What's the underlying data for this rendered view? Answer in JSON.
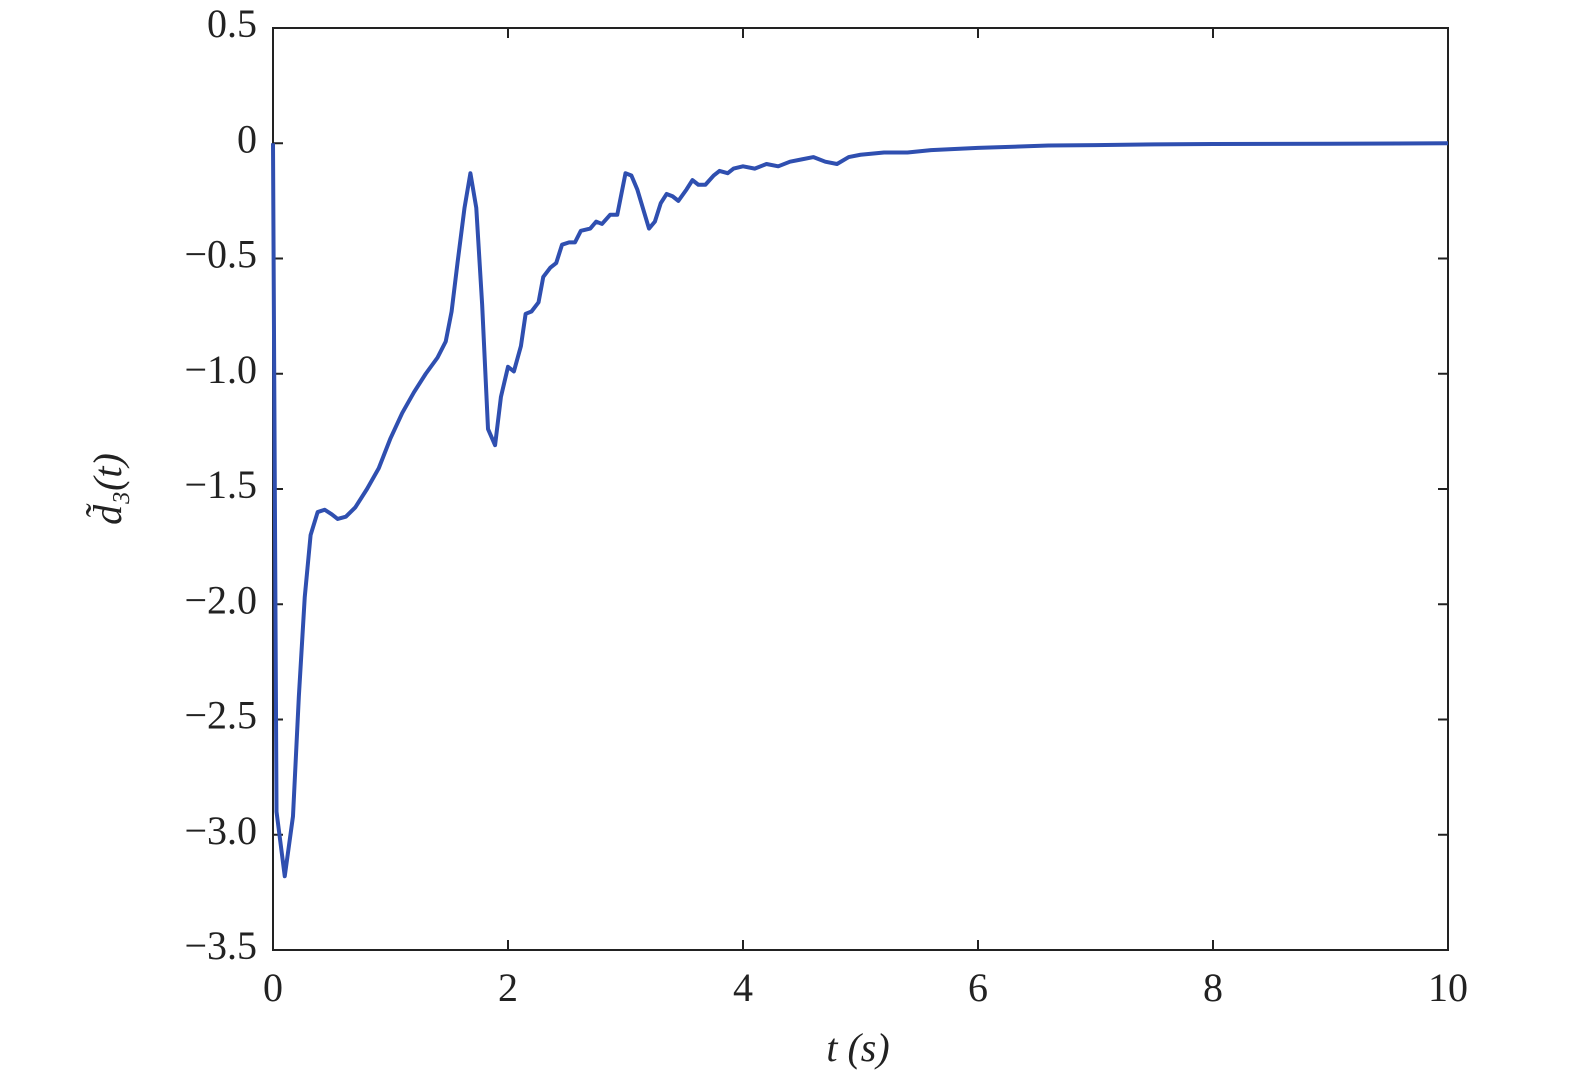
{
  "chart_data": {
    "type": "line",
    "xlabel": "t (s)",
    "ylabel": "d̃₃(t)",
    "x": [
      0,
      0.03,
      0.1,
      0.17,
      0.22,
      0.27,
      0.32,
      0.38,
      0.44,
      0.5,
      0.55,
      0.62,
      0.7,
      0.8,
      0.9,
      1.0,
      1.1,
      1.2,
      1.3,
      1.4,
      1.47,
      1.52,
      1.57,
      1.63,
      1.68,
      1.73,
      1.78,
      1.83,
      1.89,
      1.94,
      2.0,
      2.05,
      2.11,
      2.15,
      2.2,
      2.26,
      2.3,
      2.36,
      2.41,
      2.46,
      2.52,
      2.57,
      2.62,
      2.7,
      2.75,
      2.8,
      2.87,
      2.93,
      3.0,
      3.05,
      3.1,
      3.2,
      3.25,
      3.3,
      3.35,
      3.4,
      3.45,
      3.52,
      3.57,
      3.62,
      3.68,
      3.75,
      3.8,
      3.87,
      3.92,
      4.0,
      4.1,
      4.2,
      4.3,
      4.4,
      4.5,
      4.6,
      4.7,
      4.8,
      4.9,
      5.0,
      5.2,
      5.4,
      5.6,
      5.8,
      6.0,
      6.3,
      6.6,
      7.0,
      7.5,
      8.0,
      9.0,
      10.0
    ],
    "series": [
      {
        "color": "#2f4fb0",
        "values": [
          0,
          -2.9,
          -3.18,
          -2.92,
          -2.4,
          -1.97,
          -1.7,
          -1.6,
          -1.59,
          -1.61,
          -1.63,
          -1.62,
          -1.58,
          -1.5,
          -1.41,
          -1.28,
          -1.17,
          -1.08,
          -1.0,
          -0.93,
          -0.86,
          -0.73,
          -0.52,
          -0.28,
          -0.13,
          -0.28,
          -0.7,
          -1.24,
          -1.31,
          -1.1,
          -0.97,
          -0.99,
          -0.88,
          -0.74,
          -0.73,
          -0.69,
          -0.58,
          -0.54,
          -0.52,
          -0.44,
          -0.43,
          -0.43,
          -0.38,
          -0.37,
          -0.34,
          -0.35,
          -0.31,
          -0.31,
          -0.13,
          -0.14,
          -0.2,
          -0.37,
          -0.34,
          -0.26,
          -0.22,
          -0.23,
          -0.25,
          -0.2,
          -0.16,
          -0.18,
          -0.18,
          -0.14,
          -0.12,
          -0.13,
          -0.11,
          -0.1,
          -0.11,
          -0.09,
          -0.1,
          -0.08,
          -0.07,
          -0.06,
          -0.08,
          -0.09,
          -0.06,
          -0.05,
          -0.04,
          -0.04,
          -0.03,
          -0.025,
          -0.02,
          -0.015,
          -0.01,
          -0.008,
          -0.005,
          -0.003,
          -0.002,
          0
        ]
      }
    ],
    "xlim": [
      0,
      10
    ],
    "xticks": [
      0,
      2,
      4,
      6,
      8,
      10
    ],
    "ylim": [
      -3.5,
      0.5
    ],
    "yticks": [
      {
        "value": -3.5,
        "label": "−3.5"
      },
      {
        "value": -3.0,
        "label": "−3.0"
      },
      {
        "value": -2.5,
        "label": "−2.5"
      },
      {
        "value": -2.0,
        "label": "−2.0"
      },
      {
        "value": -1.5,
        "label": "−1.5"
      },
      {
        "value": -1.0,
        "label": "−1.0"
      },
      {
        "value": -0.5,
        "label": "−0.5"
      },
      0,
      0.5
    ],
    "grid": false
  }
}
